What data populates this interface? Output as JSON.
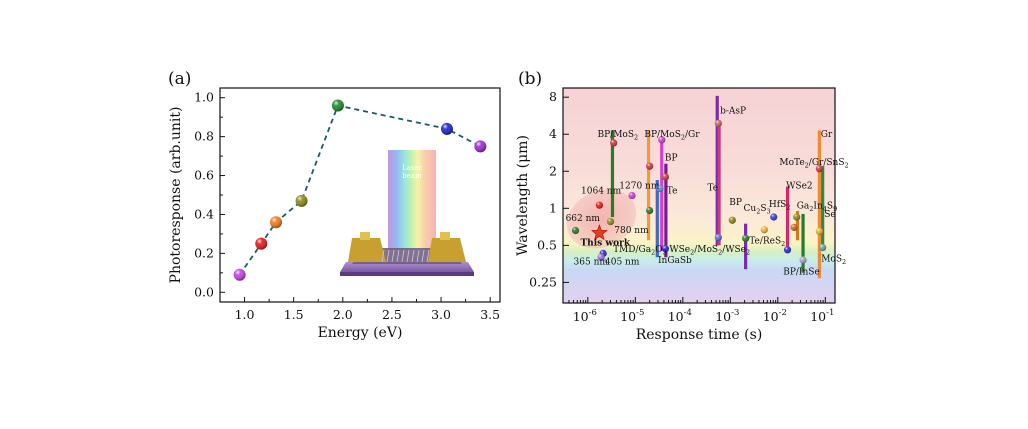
{
  "chart_data": [
    {
      "panel": "(a)",
      "type": "scatter",
      "xlabel": "Energy (eV)",
      "ylabel": "Photoresponse (arb.unit)",
      "xlim": [
        0.75,
        3.6
      ],
      "ylim": [
        -0.05,
        1.05
      ],
      "xticks": [
        "1.0",
        "1.5",
        "2.0",
        "2.5",
        "3.0",
        "3.5"
      ],
      "yticks": [
        "0.0",
        "0.2",
        "0.4",
        "0.6",
        "0.8",
        "1.0"
      ],
      "inset_label": "Laser beam",
      "points": [
        {
          "x": 0.95,
          "y": 0.09,
          "color": "#c83ee0"
        },
        {
          "x": 1.17,
          "y": 0.25,
          "color": "#e01818"
        },
        {
          "x": 1.32,
          "y": 0.36,
          "color": "#f07a1a"
        },
        {
          "x": 1.58,
          "y": 0.47,
          "color": "#8a8a1a"
        },
        {
          "x": 1.95,
          "y": 0.96,
          "color": "#1a8a2a"
        },
        {
          "x": 3.06,
          "y": 0.84,
          "color": "#1a22c8"
        },
        {
          "x": 3.4,
          "y": 0.75,
          "color": "#9a2ad0"
        }
      ]
    },
    {
      "panel": "(b)",
      "type": "scatter",
      "xlabel": "Response time (s)",
      "ylabel": "Wavelength (μm)",
      "xscale": "log",
      "yscale": "log",
      "xlim": [
        3e-07,
        0.16
      ],
      "ylim": [
        0.17,
        9.5
      ],
      "xticks": [
        {
          "v": 1e-06,
          "base": "10",
          "exp": "-6"
        },
        {
          "v": 1e-05,
          "base": "10",
          "exp": "-5"
        },
        {
          "v": 0.0001,
          "base": "10",
          "exp": "-4"
        },
        {
          "v": 0.001,
          "base": "10",
          "exp": "-3"
        },
        {
          "v": 0.01,
          "base": "10",
          "exp": "-2"
        },
        {
          "v": 0.1,
          "base": "10",
          "exp": "-1"
        }
      ],
      "yticks": [
        {
          "v": 0.25,
          "label": "0.25"
        },
        {
          "v": 0.5,
          "label": "0.5"
        },
        {
          "v": 1,
          "label": "1"
        },
        {
          "v": 2,
          "label": "2"
        },
        {
          "v": 4,
          "label": "4"
        },
        {
          "v": 8,
          "label": "8"
        }
      ],
      "ranges": [
        {
          "x": 3.3e-06,
          "y1": 0.85,
          "y2": 4.3,
          "color": "#2a7a2a"
        },
        {
          "x": 1.9e-05,
          "y1": 0.55,
          "y2": 4.3,
          "color": "#f09a40"
        },
        {
          "x": 2.9e-05,
          "y1": 0.4,
          "y2": 1.7,
          "color": "#3a6ad0"
        },
        {
          "x": 3.6e-05,
          "y1": 0.45,
          "y2": 3.7,
          "color": "#d040d0"
        },
        {
          "x": 4.4e-05,
          "y1": 0.4,
          "y2": 2.3,
          "color": "#7a1a8a"
        },
        {
          "x": 0.00053,
          "y1": 0.5,
          "y2": 8.2,
          "color": "#7a2ab0"
        },
        {
          "x": 0.00058,
          "y1": 0.5,
          "y2": 5.2,
          "color": "#c83a80"
        },
        {
          "x": 0.0021,
          "y1": 0.32,
          "y2": 0.75,
          "color": "#7a2ab0"
        },
        {
          "x": 0.016,
          "y1": 0.45,
          "y2": 1.5,
          "color": "#d02a6a"
        },
        {
          "x": 0.026,
          "y1": 0.55,
          "y2": 0.95,
          "color": "#d07a1a"
        },
        {
          "x": 0.034,
          "y1": 0.3,
          "y2": 0.9,
          "color": "#2a7a2a"
        },
        {
          "x": 0.075,
          "y1": 0.27,
          "y2": 4.3,
          "color": "#f08a30"
        },
        {
          "x": 0.088,
          "y1": 0.5,
          "y2": 2.2,
          "color": "#2a8a4a"
        }
      ],
      "points": [
        {
          "x": 5.5e-07,
          "y": 0.66,
          "color": "#2a7a2a"
        },
        {
          "x": 1.75e-06,
          "y": 1.06,
          "color": "#e01818"
        },
        {
          "x": 1.75e-06,
          "y": 0.63,
          "color": "#e04020",
          "star": true
        },
        {
          "x": 2.1e-06,
          "y": 0.43,
          "color": "#2a2ad0"
        },
        {
          "x": 1.9e-06,
          "y": 0.4,
          "color": "#9a6ad0"
        },
        {
          "x": 3e-06,
          "y": 0.78,
          "color": "#8a8a1a"
        },
        {
          "x": 3.5e-06,
          "y": 3.4,
          "color": "#c83a40"
        },
        {
          "x": 8.5e-06,
          "y": 1.27,
          "color": "#d040d0"
        },
        {
          "x": 2e-05,
          "y": 0.96,
          "color": "#2a7a2a"
        },
        {
          "x": 2e-05,
          "y": 2.2,
          "color": "#c83a40"
        },
        {
          "x": 3.6e-05,
          "y": 3.6,
          "color": "#d040d0"
        },
        {
          "x": 3.3e-05,
          "y": 1.45,
          "color": "#6a8ad0"
        },
        {
          "x": 4.3e-05,
          "y": 1.8,
          "color": "#c83a40"
        },
        {
          "x": 4.3e-05,
          "y": 0.47,
          "color": "#2a2ad0"
        },
        {
          "x": 0.00056,
          "y": 0.58,
          "color": "#6a6ad0"
        },
        {
          "x": 0.00056,
          "y": 4.9,
          "color": "#c86a50"
        },
        {
          "x": 0.0011,
          "y": 0.8,
          "color": "#8a8a1a"
        },
        {
          "x": 0.0021,
          "y": 0.57,
          "color": "#2a7a2a"
        },
        {
          "x": 0.0052,
          "y": 0.67,
          "color": "#f0b030"
        },
        {
          "x": 0.0082,
          "y": 0.85,
          "color": "#3a3ad0"
        },
        {
          "x": 0.016,
          "y": 0.46,
          "color": "#2a2ad0"
        },
        {
          "x": 0.022,
          "y": 0.7,
          "color": "#c86a20"
        },
        {
          "x": 0.025,
          "y": 0.85,
          "color": "#8a8a1a"
        },
        {
          "x": 0.034,
          "y": 0.38,
          "color": "#a0a0c0"
        },
        {
          "x": 0.075,
          "y": 2.1,
          "color": "#c83a40"
        },
        {
          "x": 0.075,
          "y": 0.65,
          "color": "#f0b030"
        },
        {
          "x": 0.088,
          "y": 0.48,
          "color": "#6aa0a0"
        }
      ],
      "labels": [
        {
          "x": 1.6e-06,
          "y": 3.8,
          "t": "BP/MoS",
          "sub": "2"
        },
        {
          "x": 1.55e-05,
          "y": 3.8,
          "t": "BP/MoS",
          "sub": "2",
          "after": "/Gr"
        },
        {
          "x": 4.2e-05,
          "y": 2.45,
          "t": "BP"
        },
        {
          "x": 4.6e-06,
          "y": 1.45,
          "t": "1270 nm"
        },
        {
          "x": 7.2e-07,
          "y": 1.32,
          "t": "1064 nm"
        },
        {
          "x": 4.6e-05,
          "y": 1.32,
          "t": "Te"
        },
        {
          "x": 3.4e-07,
          "y": 0.79,
          "t": "662 nm"
        },
        {
          "x": 3.6e-06,
          "y": 0.63,
          "t": "780 nm"
        },
        {
          "x": 7e-07,
          "y": 0.5,
          "t": "This work",
          "bold": true
        },
        {
          "x": 3.4e-06,
          "y": 0.44,
          "t": "TMD/Ga",
          "sub": "2",
          "after": "O",
          "sub2": "3"
        },
        {
          "x": 5.2e-05,
          "y": 0.44,
          "t": "WSe",
          "sub": "2",
          "after": "/MoS",
          "sub2": "2",
          "after2": "/WSe",
          "sub3": "2"
        },
        {
          "x": 5e-07,
          "y": 0.35,
          "t": "365 nm"
        },
        {
          "x": 2.3e-06,
          "y": 0.35,
          "t": "405 nm"
        },
        {
          "x": 3e-05,
          "y": 0.36,
          "t": "InGaSb"
        },
        {
          "x": 0.00061,
          "y": 5.9,
          "t": "b-AsP"
        },
        {
          "x": 0.00033,
          "y": 1.4,
          "t": "Te"
        },
        {
          "x": 0.00095,
          "y": 1.06,
          "t": "BP"
        },
        {
          "x": 0.0019,
          "y": 0.95,
          "t": "Cu",
          "sub": "2",
          "after": "S",
          "sub2": "3"
        },
        {
          "x": 0.0065,
          "y": 1.02,
          "t": "HfS",
          "sub": "2"
        },
        {
          "x": 0.015,
          "y": 1.45,
          "t": "WSe2"
        },
        {
          "x": 0.025,
          "y": 1.0,
          "t": "Ga",
          "sub": "2",
          "after": "In",
          "sub2": "4",
          "after2": "S",
          "sub3": "9"
        },
        {
          "x": 0.095,
          "y": 0.85,
          "t": "Se"
        },
        {
          "x": 0.0025,
          "y": 0.52,
          "t": "Te/ReS",
          "sub": "2"
        },
        {
          "x": 0.013,
          "y": 0.29,
          "t": "BP/InSe"
        },
        {
          "x": 0.082,
          "y": 0.37,
          "t": "MoS",
          "sub": "2"
        },
        {
          "x": 0.08,
          "y": 3.8,
          "t": "Gr"
        },
        {
          "x": 0.0108,
          "y": 2.25,
          "t": "MoTe",
          "sub": "2",
          "after": "/Gr/SnS",
          "sub2": "2"
        }
      ]
    }
  ]
}
